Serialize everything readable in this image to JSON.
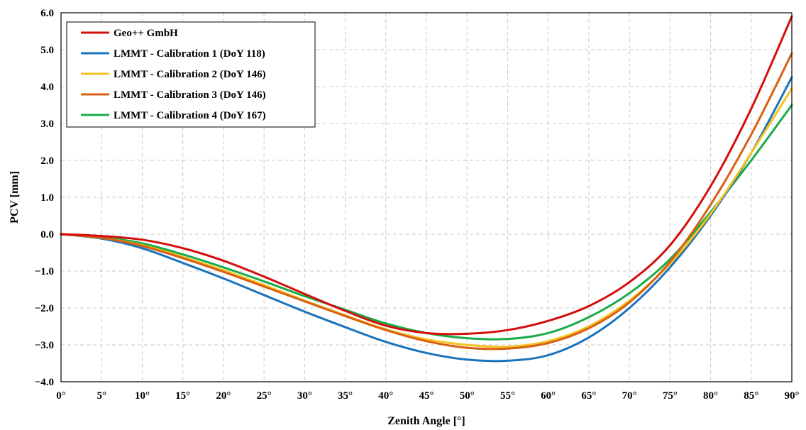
{
  "chart_data": {
    "type": "line",
    "xlabel": "Zenith Angle [°]",
    "ylabel": "PCV [mm]",
    "xlim": [
      0,
      90
    ],
    "ylim": [
      -4.0,
      6.0
    ],
    "x_ticks": [
      0,
      5,
      10,
      15,
      20,
      25,
      30,
      35,
      40,
      45,
      50,
      55,
      60,
      65,
      70,
      75,
      80,
      85,
      90
    ],
    "x_tick_labels": [
      "0°",
      "5°",
      "10°",
      "15°",
      "20°",
      "25°",
      "30°",
      "35°",
      "40°",
      "45°",
      "50°",
      "55°",
      "60°",
      "65°",
      "70°",
      "75°",
      "80°",
      "85°",
      "90°"
    ],
    "y_ticks": [
      -4,
      -3,
      -2,
      -1,
      0,
      1,
      2,
      3,
      4,
      5,
      6
    ],
    "y_tick_labels": [
      "−4.0",
      "−3.0",
      "−2.0",
      "−1.0",
      "0.0",
      "1.0",
      "2.0",
      "3.0",
      "4.0",
      "5.0",
      "6.0"
    ],
    "grid": true,
    "legend_position": "top-left",
    "x": [
      0,
      5,
      10,
      15,
      20,
      25,
      30,
      35,
      40,
      45,
      50,
      55,
      60,
      65,
      70,
      75,
      80,
      85,
      90
    ],
    "series": [
      {
        "name": "Geo++ GmbH",
        "color": "#d40d0d",
        "values": [
          0.0,
          -0.05,
          -0.15,
          -0.38,
          -0.72,
          -1.15,
          -1.62,
          -2.08,
          -2.48,
          -2.68,
          -2.7,
          -2.6,
          -2.35,
          -1.95,
          -1.3,
          -0.3,
          1.3,
          3.4,
          5.9
        ]
      },
      {
        "name": "LMMT - Calibration 1 (DoY 118)",
        "color": "#1a73bd",
        "values": [
          0.0,
          -0.12,
          -0.38,
          -0.78,
          -1.2,
          -1.65,
          -2.1,
          -2.52,
          -2.92,
          -3.22,
          -3.4,
          -3.43,
          -3.28,
          -2.8,
          -2.0,
          -0.9,
          0.5,
          2.2,
          4.25
        ]
      },
      {
        "name": "LMMT - Calibration 2 (DoY 146)",
        "color": "#f7c21d",
        "values": [
          0.0,
          -0.1,
          -0.3,
          -0.62,
          -0.98,
          -1.38,
          -1.8,
          -2.2,
          -2.58,
          -2.85,
          -3.0,
          -3.05,
          -2.9,
          -2.5,
          -1.8,
          -0.8,
          0.55,
          2.2,
          3.95
        ]
      },
      {
        "name": "LMMT - Calibration 3 (DoY 146)",
        "color": "#d86013",
        "values": [
          0.0,
          -0.1,
          -0.32,
          -0.65,
          -1.02,
          -1.42,
          -1.82,
          -2.22,
          -2.6,
          -2.9,
          -3.08,
          -3.1,
          -2.95,
          -2.55,
          -1.85,
          -0.75,
          0.8,
          2.7,
          4.9
        ]
      },
      {
        "name": "LMMT - Calibration 4 (DoY 167)",
        "color": "#1aab48",
        "values": [
          0.0,
          -0.08,
          -0.25,
          -0.55,
          -0.9,
          -1.28,
          -1.68,
          -2.05,
          -2.42,
          -2.68,
          -2.82,
          -2.84,
          -2.68,
          -2.25,
          -1.6,
          -0.68,
          0.6,
          2.0,
          3.5
        ]
      }
    ]
  }
}
